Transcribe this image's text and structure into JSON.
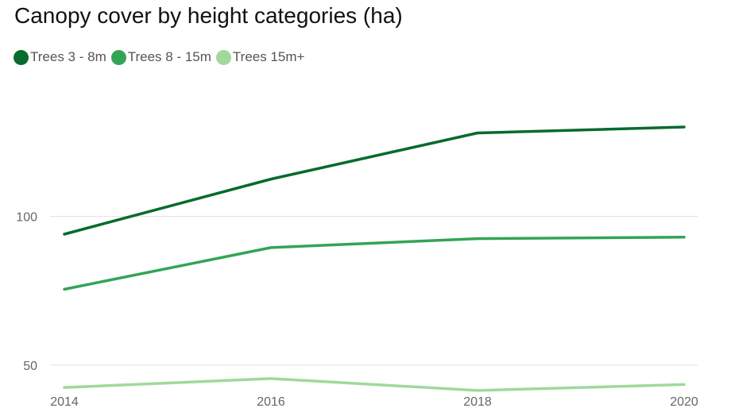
{
  "title": "Canopy cover by height categories (ha)",
  "chart_data": {
    "type": "line",
    "title": "Canopy cover by height categories (ha)",
    "x": [
      2014,
      2016,
      2018,
      2020
    ],
    "x_tick_labels": [
      "2014",
      "2016",
      "2018",
      "2020"
    ],
    "y_ticks": [
      50,
      100
    ],
    "y_tick_labels": [
      "50",
      "100"
    ],
    "ylim": [
      42,
      146
    ],
    "grid": true,
    "legend_position": "top-left",
    "series": [
      {
        "name": "Trees 3 - 8m",
        "color": "#066b2d",
        "values": [
          94,
          112.5,
          128,
          130
        ]
      },
      {
        "name": "Trees 8 - 15m",
        "color": "#33a456",
        "values": [
          75.5,
          89.5,
          92.5,
          93
        ]
      },
      {
        "name": "Trees 15m+",
        "color": "#a0d99b",
        "values": [
          42.5,
          45.5,
          41.5,
          43.5
        ]
      }
    ]
  }
}
